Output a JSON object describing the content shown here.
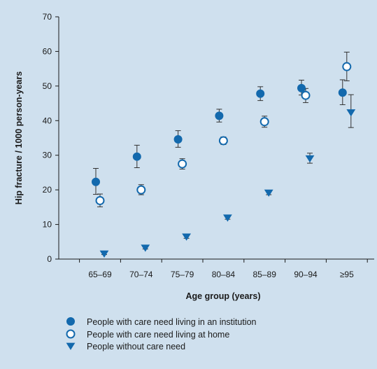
{
  "chart_data": {
    "type": "scatter",
    "title": "",
    "xlabel": "Age group (years)",
    "ylabel": "Hip fracture / 1000 person-years",
    "categories": [
      "65–69",
      "70–74",
      "75–79",
      "80–84",
      "85–89",
      "90–94",
      "≥95"
    ],
    "ylim": [
      0,
      70
    ],
    "yticks": [
      "0",
      "10",
      "20",
      "30",
      "40",
      "50",
      "60",
      "70"
    ],
    "grid": false,
    "legend_position": "bottom-left",
    "series": [
      {
        "name": "People with care need living in an institution",
        "marker": "filled-circle",
        "color": "#1369ad",
        "values": [
          22.3,
          29.6,
          34.6,
          41.4,
          47.8,
          49.4,
          48.1
        ],
        "err_low": [
          18.7,
          26.4,
          32.3,
          39.6,
          45.8,
          47.4,
          44.6
        ],
        "err_high": [
          26.2,
          32.9,
          37.1,
          43.3,
          49.8,
          51.7,
          51.8
        ]
      },
      {
        "name": "People with care need living at home",
        "marker": "open-circle",
        "color": "#1369ad",
        "values": [
          16.9,
          20.0,
          27.5,
          34.2,
          39.7,
          47.3,
          55.6
        ],
        "err_low": [
          15.1,
          18.6,
          26.0,
          33.1,
          38.1,
          45.2,
          51.5
        ],
        "err_high": [
          18.8,
          21.5,
          29.0,
          35.3,
          41.3,
          49.3,
          59.8
        ]
      },
      {
        "name": "People without care need",
        "marker": "triangle-down",
        "color": "#1369ad",
        "values": [
          1.6,
          3.3,
          6.5,
          12.0,
          19.2,
          29.1,
          42.4
        ],
        "err_low": [
          1.3,
          2.9,
          6.0,
          11.5,
          18.6,
          27.7,
          38.0
        ],
        "err_high": [
          1.9,
          3.7,
          6.9,
          12.5,
          19.8,
          30.6,
          47.5
        ]
      }
    ]
  }
}
